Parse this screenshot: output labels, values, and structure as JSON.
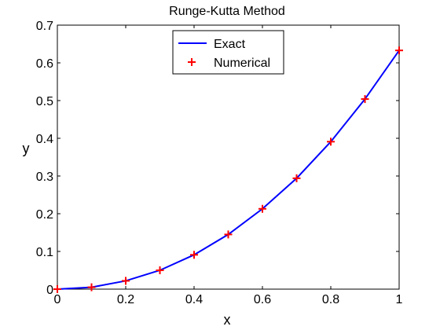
{
  "chart_data": {
    "type": "line",
    "title": "Runge-Kutta Method",
    "xlabel": "x",
    "ylabel": "y",
    "xlim": [
      0,
      1
    ],
    "ylim": [
      0,
      0.7
    ],
    "xticks": [
      0,
      0.2,
      0.4,
      0.6,
      0.8,
      1
    ],
    "yticks": [
      0,
      0.1,
      0.2,
      0.3,
      0.4,
      0.5,
      0.6,
      0.7
    ],
    "grid": false,
    "legend_position": "top-center",
    "series": [
      {
        "name": "Exact",
        "style": "line",
        "color": "#0000ff",
        "x": [
          0,
          0.1,
          0.2,
          0.3,
          0.4,
          0.5,
          0.6,
          0.7,
          0.8,
          0.9,
          1.0
        ],
        "y": [
          0,
          0.005,
          0.022,
          0.05,
          0.091,
          0.145,
          0.213,
          0.294,
          0.391,
          0.504,
          0.633
        ]
      },
      {
        "name": "Numerical",
        "style": "marker-plus",
        "color": "#ff0000",
        "x": [
          0,
          0.1,
          0.2,
          0.3,
          0.4,
          0.5,
          0.6,
          0.7,
          0.8,
          0.9,
          1.0
        ],
        "y": [
          0,
          0.005,
          0.022,
          0.05,
          0.091,
          0.145,
          0.213,
          0.294,
          0.391,
          0.504,
          0.633
        ]
      }
    ]
  }
}
